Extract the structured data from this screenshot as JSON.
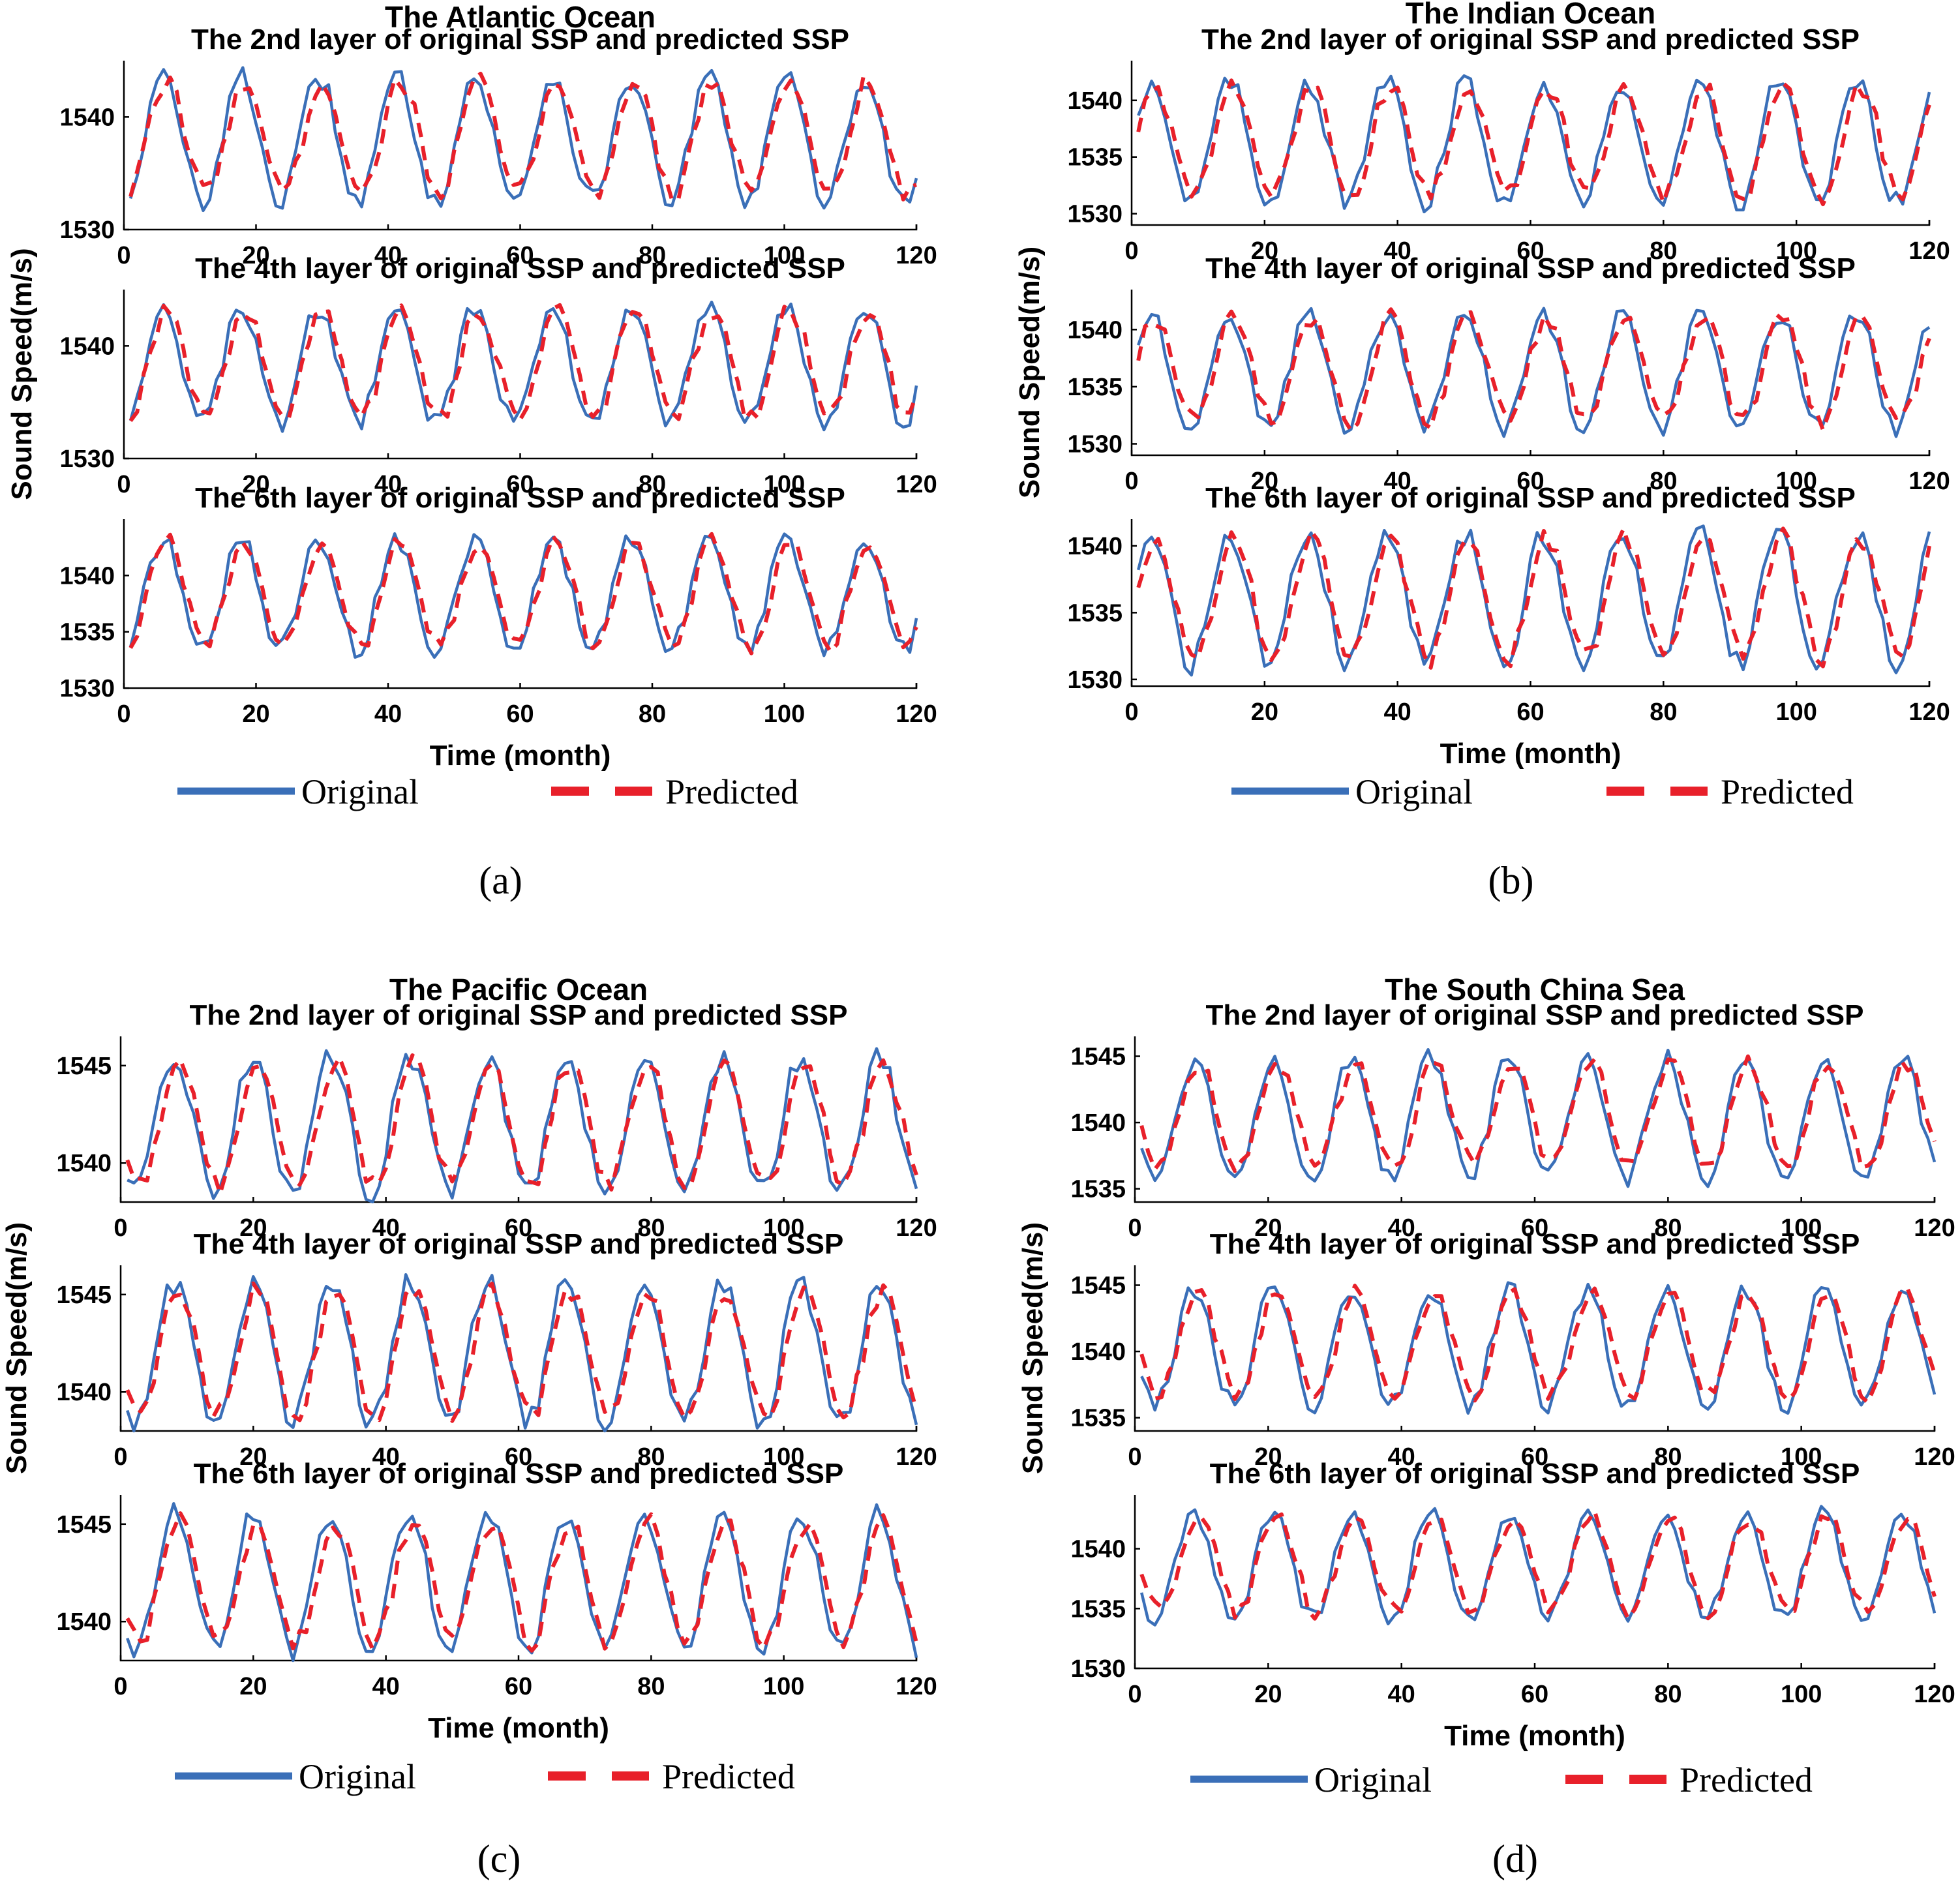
{
  "panels": [
    {
      "id": "a",
      "caption": "(a)",
      "title": "The Atlantic Ocean",
      "ylabel": "Sound Speed(m/s)",
      "xlabel": "Time (month)",
      "legend": {
        "original": "Original",
        "predicted": "Predicted"
      },
      "subplots": [
        {
          "title": "The 2nd layer of original SSP and predicted SSP",
          "yticks": [
            "1530",
            "1540"
          ],
          "xticks": [
            "0",
            "20",
            "40",
            "60",
            "80",
            "100",
            "120"
          ]
        },
        {
          "title": "The 4th layer of original SSP and predicted SSP",
          "yticks": [
            "1530",
            "1540"
          ],
          "xticks": [
            "0",
            "20",
            "40",
            "60",
            "80",
            "100",
            "120"
          ]
        },
        {
          "title": "The 6th layer of original SSP and predicted SSP",
          "yticks": [
            "1530",
            "1535",
            "1540"
          ],
          "xticks": [
            "0",
            "20",
            "40",
            "60",
            "80",
            "100",
            "120"
          ]
        }
      ]
    },
    {
      "id": "b",
      "caption": "(b)",
      "title": "The Indian Ocean",
      "ylabel": "Sound Speed(m/s)",
      "xlabel": "Time (month)",
      "legend": {
        "original": "Original",
        "predicted": "Predicted"
      },
      "subplots": [
        {
          "title": "The 2nd layer of original SSP and predicted SSP",
          "yticks": [
            "1530",
            "1535",
            "1540"
          ],
          "xticks": [
            "0",
            "20",
            "40",
            "60",
            "80",
            "100",
            "120"
          ]
        },
        {
          "title": "The 4th layer of original SSP and predicted SSP",
          "yticks": [
            "1530",
            "1535",
            "1540"
          ],
          "xticks": [
            "0",
            "20",
            "40",
            "60",
            "80",
            "100",
            "120"
          ]
        },
        {
          "title": "The 6th layer of original SSP and predicted SSP",
          "yticks": [
            "1530",
            "1535",
            "1540"
          ],
          "xticks": [
            "0",
            "20",
            "40",
            "60",
            "80",
            "100",
            "120"
          ]
        }
      ]
    },
    {
      "id": "c",
      "caption": "(c)",
      "title": "The Pacific Ocean",
      "ylabel": "Sound Speed(m/s)",
      "xlabel": "Time (month)",
      "legend": {
        "original": "Original",
        "predicted": "Predicted"
      },
      "subplots": [
        {
          "title": "The 2nd layer of original SSP and predicted SSP",
          "yticks": [
            "1540",
            "1545"
          ],
          "xticks": [
            "0",
            "20",
            "40",
            "60",
            "80",
            "100",
            "120"
          ]
        },
        {
          "title": "The 4th layer of original SSP and predicted SSP",
          "yticks": [
            "1540",
            "1545"
          ],
          "xticks": [
            "0",
            "20",
            "40",
            "60",
            "80",
            "100",
            "120"
          ]
        },
        {
          "title": "The 6th layer of original SSP and predicted SSP",
          "yticks": [
            "1540",
            "1545"
          ],
          "xticks": [
            "0",
            "20",
            "40",
            "60",
            "80",
            "100",
            "120"
          ]
        }
      ]
    },
    {
      "id": "d",
      "caption": "(d)",
      "title": "The South China Sea",
      "ylabel": "Sound Speed(m/s)",
      "xlabel": "Time (month)",
      "legend": {
        "original": "Original",
        "predicted": "Predicted"
      },
      "subplots": [
        {
          "title": "The 2nd layer of original SSP and predicted SSP",
          "yticks": [
            "1535",
            "1540",
            "1545"
          ],
          "xticks": [
            "0",
            "20",
            "40",
            "60",
            "80",
            "100",
            "120"
          ]
        },
        {
          "title": "The 4th layer of original SSP and predicted SSP",
          "yticks": [
            "1535",
            "1540",
            "1545"
          ],
          "xticks": [
            "0",
            "20",
            "40",
            "60",
            "80",
            "100",
            "120"
          ]
        },
        {
          "title": "The 6th layer of original SSP and predicted SSP",
          "yticks": [
            "1530",
            "1535",
            "1540"
          ],
          "xticks": [
            "0",
            "20",
            "40",
            "60",
            "80",
            "100",
            "120"
          ]
        }
      ]
    }
  ],
  "chart_data": [
    {
      "panel": "a",
      "subplot": 1,
      "type": "line",
      "title": "The 2nd layer of original SSP and predicted SSP",
      "xlabel": "Time (month)",
      "ylabel": "Sound Speed(m/s)",
      "xlim": [
        0,
        120
      ],
      "ylim": [
        1530,
        1545
      ],
      "months": 120,
      "series": [
        {
          "name": "Original",
          "style": "solid",
          "color": "#3a6fb8",
          "mean": 1538.0,
          "amplitude": 5.5,
          "period": 11.8,
          "phase": 0.0
        },
        {
          "name": "Predicted",
          "style": "dashed",
          "color": "#e8202a",
          "mean": 1538.2,
          "amplitude": 5.0,
          "period": 11.8,
          "phase": 0.3
        }
      ]
    },
    {
      "panel": "a",
      "subplot": 2,
      "type": "line",
      "title": "The 4th layer of original SSP and predicted SSP",
      "xlabel": "Time (month)",
      "ylabel": "Sound Speed(m/s)",
      "xlim": [
        0,
        120
      ],
      "ylim": [
        1530,
        1545
      ],
      "months": 120,
      "series": [
        {
          "name": "Original",
          "style": "solid",
          "color": "#3a6fb8",
          "mean": 1538.3,
          "amplitude": 5.2,
          "period": 11.8,
          "phase": 0.0
        },
        {
          "name": "Predicted",
          "style": "dashed",
          "color": "#e8202a",
          "mean": 1538.4,
          "amplitude": 4.8,
          "period": 11.8,
          "phase": 0.3
        }
      ]
    },
    {
      "panel": "a",
      "subplot": 3,
      "type": "line",
      "title": "The 6th layer of original SSP and predicted SSP",
      "xlabel": "Time (month)",
      "ylabel": "Sound Speed(m/s)",
      "xlim": [
        0,
        120
      ],
      "ylim": [
        1530,
        1545
      ],
      "months": 120,
      "series": [
        {
          "name": "Original",
          "style": "solid",
          "color": "#3a6fb8",
          "mean": 1538.3,
          "amplitude": 4.9,
          "period": 11.8,
          "phase": 0.0
        },
        {
          "name": "Predicted",
          "style": "dashed",
          "color": "#e8202a",
          "mean": 1538.4,
          "amplitude": 4.6,
          "period": 11.8,
          "phase": 0.3
        }
      ]
    },
    {
      "panel": "b",
      "subplot": 1,
      "type": "line",
      "title": "The 2nd layer of original SSP and predicted SSP",
      "xlabel": "Time (month)",
      "ylabel": "Sound Speed(m/s)",
      "xlim": [
        0,
        120
      ],
      "ylim": [
        1529,
        1543.5
      ],
      "months": 120,
      "series": [
        {
          "name": "Original",
          "style": "solid",
          "color": "#3a6fb8",
          "mean": 1536.3,
          "amplitude": 5.3,
          "period": 11.8,
          "phase": -1.6
        },
        {
          "name": "Predicted",
          "style": "dashed",
          "color": "#e8202a",
          "mean": 1536.4,
          "amplitude": 4.8,
          "period": 11.8,
          "phase": -1.3
        }
      ]
    },
    {
      "panel": "b",
      "subplot": 2,
      "type": "line",
      "title": "The 4th layer of original SSP and predicted SSP",
      "xlabel": "Time (month)",
      "ylabel": "Sound Speed(m/s)",
      "xlim": [
        0,
        120
      ],
      "ylim": [
        1529,
        1543.5
      ],
      "months": 120,
      "series": [
        {
          "name": "Original",
          "style": "solid",
          "color": "#3a6fb8",
          "mean": 1536.4,
          "amplitude": 5.0,
          "period": 11.8,
          "phase": -1.6
        },
        {
          "name": "Predicted",
          "style": "dashed",
          "color": "#e8202a",
          "mean": 1536.5,
          "amplitude": 4.6,
          "period": 11.8,
          "phase": -1.3
        }
      ]
    },
    {
      "panel": "b",
      "subplot": 3,
      "type": "line",
      "title": "The 6th layer of original SSP and predicted SSP",
      "xlabel": "Time (month)",
      "ylabel": "Sound Speed(m/s)",
      "xlim": [
        0,
        120
      ],
      "ylim": [
        1529.5,
        1542
      ],
      "months": 120,
      "series": [
        {
          "name": "Original",
          "style": "solid",
          "color": "#3a6fb8",
          "mean": 1536.0,
          "amplitude": 4.9,
          "period": 11.8,
          "phase": -1.6
        },
        {
          "name": "Predicted",
          "style": "dashed",
          "color": "#e8202a",
          "mean": 1536.1,
          "amplitude": 4.5,
          "period": 11.8,
          "phase": -1.3
        }
      ]
    },
    {
      "panel": "c",
      "subplot": 1,
      "type": "line",
      "title": "The 2nd layer of original SSP and predicted SSP",
      "xlabel": "Time (month)",
      "ylabel": "Sound Speed(m/s)",
      "xlim": [
        0,
        120
      ],
      "ylim": [
        1538,
        1546.5
      ],
      "months": 120,
      "series": [
        {
          "name": "Original",
          "style": "solid",
          "color": "#3a6fb8",
          "mean": 1542.0,
          "amplitude": 3.5,
          "period": 11.8,
          "phase": 1.2
        },
        {
          "name": "Predicted",
          "style": "dashed",
          "color": "#e8202a",
          "mean": 1542.0,
          "amplitude": 3.1,
          "period": 11.8,
          "phase": 1.5
        }
      ]
    },
    {
      "panel": "c",
      "subplot": 2,
      "type": "line",
      "title": "The 4th layer of original SSP and predicted SSP",
      "xlabel": "Time (month)",
      "ylabel": "Sound Speed(m/s)",
      "xlim": [
        0,
        120
      ],
      "ylim": [
        1538,
        1546.5
      ],
      "months": 120,
      "series": [
        {
          "name": "Original",
          "style": "solid",
          "color": "#3a6fb8",
          "mean": 1542.0,
          "amplitude": 3.6,
          "period": 11.8,
          "phase": 1.2
        },
        {
          "name": "Predicted",
          "style": "dashed",
          "color": "#e8202a",
          "mean": 1542.0,
          "amplitude": 3.2,
          "period": 11.8,
          "phase": 1.5
        }
      ]
    },
    {
      "panel": "c",
      "subplot": 3,
      "type": "line",
      "title": "The 6th layer of original SSP and predicted SSP",
      "xlabel": "Time (month)",
      "ylabel": "Sound Speed(m/s)",
      "xlim": [
        0,
        120
      ],
      "ylim": [
        1538,
        1546.5
      ],
      "months": 120,
      "series": [
        {
          "name": "Original",
          "style": "solid",
          "color": "#3a6fb8",
          "mean": 1542.0,
          "amplitude": 3.5,
          "period": 11.8,
          "phase": 1.2
        },
        {
          "name": "Predicted",
          "style": "dashed",
          "color": "#e8202a",
          "mean": 1542.0,
          "amplitude": 3.1,
          "period": 11.8,
          "phase": 1.5
        }
      ]
    },
    {
      "panel": "d",
      "subplot": 1,
      "type": "line",
      "title": "The 2nd layer of original SSP and predicted SSP",
      "xlabel": "Time (month)",
      "ylabel": "Sound Speed(m/s)",
      "xlim": [
        0,
        120
      ],
      "ylim": [
        1534,
        1546.5
      ],
      "months": 120,
      "series": [
        {
          "name": "Original",
          "style": "solid",
          "color": "#3a6fb8",
          "mean": 1540.3,
          "amplitude": 4.5,
          "period": 11.8,
          "phase": 1.6
        },
        {
          "name": "Predicted",
          "style": "dashed",
          "color": "#e8202a",
          "mean": 1540.6,
          "amplitude": 3.9,
          "period": 11.8,
          "phase": 1.9
        }
      ]
    },
    {
      "panel": "d",
      "subplot": 2,
      "type": "line",
      "title": "The 4th layer of original SSP and predicted SSP",
      "xlabel": "Time (month)",
      "ylabel": "Sound Speed(m/s)",
      "xlim": [
        0,
        120
      ],
      "ylim": [
        1534,
        1546.5
      ],
      "months": 120,
      "series": [
        {
          "name": "Original",
          "style": "solid",
          "color": "#3a6fb8",
          "mean": 1540.3,
          "amplitude": 4.4,
          "period": 11.8,
          "phase": 1.6
        },
        {
          "name": "Predicted",
          "style": "dashed",
          "color": "#e8202a",
          "mean": 1540.6,
          "amplitude": 3.8,
          "period": 11.8,
          "phase": 1.9
        }
      ]
    },
    {
      "panel": "d",
      "subplot": 3,
      "type": "line",
      "title": "The 6th layer of original SSP and predicted SSP",
      "xlabel": "Time (month)",
      "ylabel": "Sound Speed(m/s)",
      "xlim": [
        0,
        120
      ],
      "ylim": [
        1530,
        1544.5
      ],
      "months": 120,
      "series": [
        {
          "name": "Original",
          "style": "solid",
          "color": "#3a6fb8",
          "mean": 1538.5,
          "amplitude": 4.4,
          "period": 11.8,
          "phase": 1.6
        },
        {
          "name": "Predicted",
          "style": "dashed",
          "color": "#e8202a",
          "mean": 1538.7,
          "amplitude": 4.0,
          "period": 11.8,
          "phase": 1.9
        }
      ]
    }
  ]
}
